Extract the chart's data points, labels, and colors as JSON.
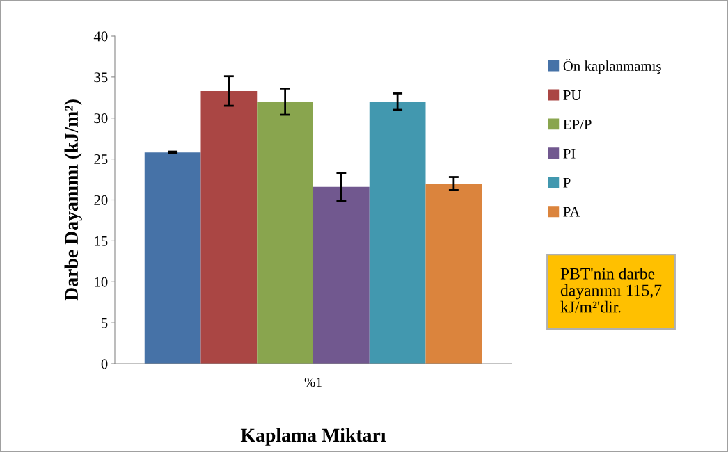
{
  "chart_data": {
    "type": "bar",
    "xlabel": "Kaplama Miktarı",
    "ylabel": "Darbe Dayanımı (kJ/m²)",
    "categories": [
      "%1"
    ],
    "series": [
      {
        "name": "Ön kaplanmamış",
        "color": "#4672a7",
        "values": [
          25.8
        ],
        "errors": [
          0.1
        ]
      },
      {
        "name": "PU",
        "color": "#aa4644",
        "values": [
          33.3
        ],
        "errors": [
          1.8
        ]
      },
      {
        "name": "EP/P",
        "color": "#89a54e",
        "values": [
          32.0
        ],
        "errors": [
          1.6
        ]
      },
      {
        "name": "PI",
        "color": "#71588f",
        "values": [
          21.6
        ],
        "errors": [
          1.7
        ]
      },
      {
        "name": "P",
        "color": "#4298af",
        "values": [
          32.0
        ],
        "errors": [
          1.0
        ]
      },
      {
        "name": "PA",
        "color": "#db843d",
        "values": [
          22.0
        ],
        "errors": [
          0.8
        ]
      }
    ],
    "ylim": [
      0,
      40
    ],
    "yticks": [
      0,
      5,
      10,
      15,
      20,
      25,
      30,
      35,
      40
    ],
    "grid": false,
    "legend": "right",
    "annotations": [
      "PBT'nin darbe\ndayanımı 115,7\nkJ/m²'dir."
    ]
  }
}
